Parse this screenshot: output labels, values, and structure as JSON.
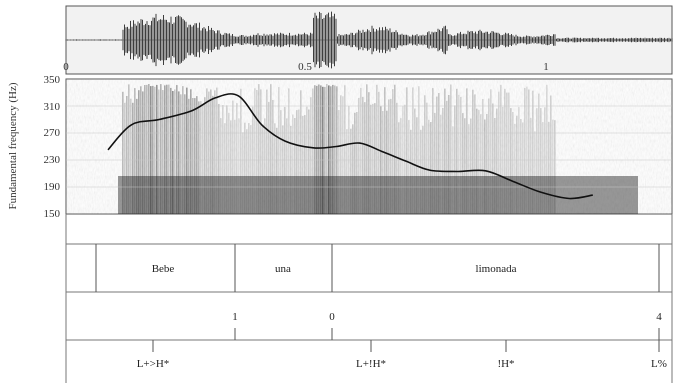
{
  "time_axis": {
    "labels": [
      "0",
      "0.5",
      "1"
    ]
  },
  "pitch_axis": {
    "label": "Fundamental frequency (Hz)",
    "ticks": [
      "350",
      "310",
      "270",
      "230",
      "190",
      "150"
    ]
  },
  "words": [
    "Bebe",
    "una",
    "limonada"
  ],
  "break_indices": [
    "1",
    "0",
    "4"
  ],
  "tones": [
    "L+>H*",
    "L+!H*",
    "!H*",
    "L%"
  ],
  "chart_data": {
    "type": "line",
    "x_range": [
      0,
      1.3
    ],
    "ylim": [
      150,
      350
    ],
    "ylabel": "Fundamental frequency (Hz)",
    "series": [
      {
        "x": [
          0.09,
          0.14,
          0.2,
          0.27,
          0.32,
          0.37,
          0.42,
          0.47,
          0.53,
          0.58,
          0.63,
          0.68,
          0.73,
          0.78,
          0.84,
          0.9,
          0.96,
          1.02,
          1.08,
          1.13
        ],
        "y": [
          245,
          282,
          290,
          303,
          322,
          325,
          282,
          258,
          248,
          250,
          255,
          242,
          228,
          215,
          213,
          214,
          198,
          182,
          173,
          178
        ]
      }
    ]
  }
}
